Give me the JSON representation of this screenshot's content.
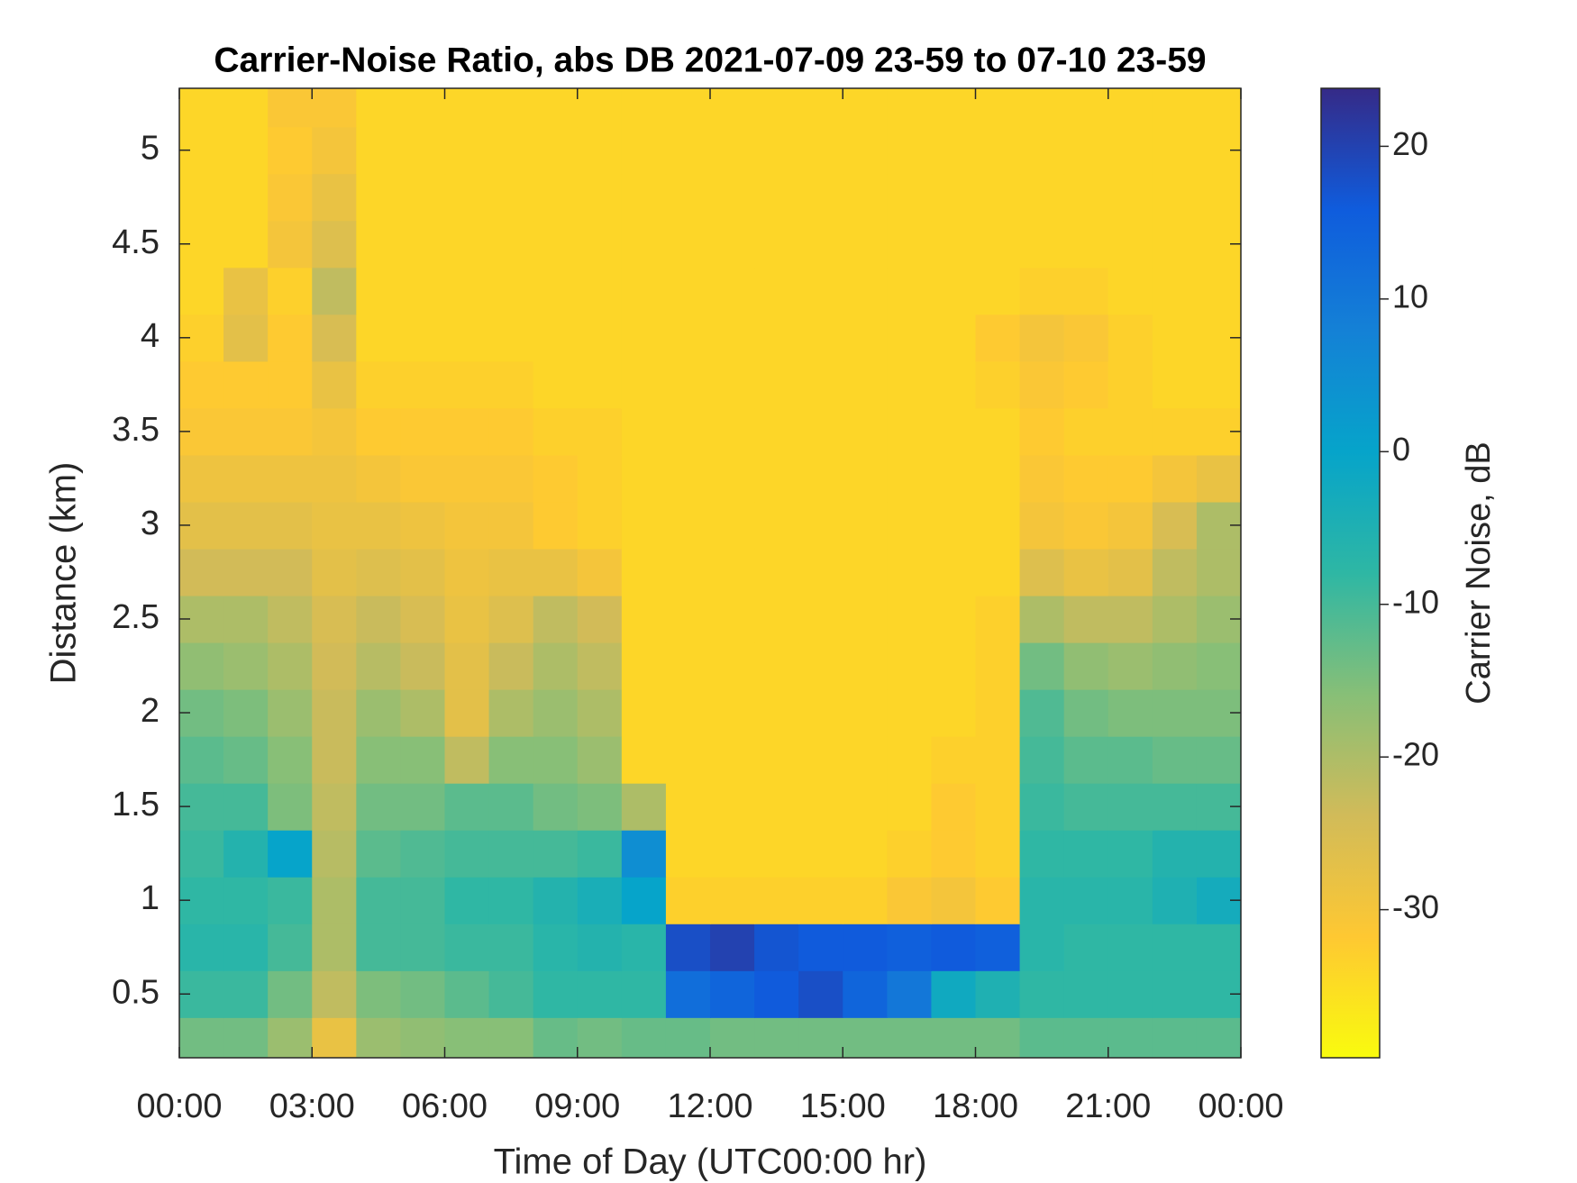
{
  "chart_data": {
    "type": "heatmap",
    "title": "Carrier-Noise Ratio, abs DB 2021-07-09 23-59 to 07-10 23-59",
    "x_label": "Time of Day (UTC00:00 hr)",
    "y_label": "Distance (km)",
    "colorbar_label": "Carrier Noise, dB",
    "x": [
      0.5,
      1.5,
      2.5,
      3.5,
      4.5,
      5.5,
      6.5,
      7.5,
      8.5,
      9.5,
      10.5,
      11.5,
      12.5,
      13.5,
      14.5,
      15.5,
      16.5,
      17.5,
      18.5,
      19.5,
      20.5,
      21.5,
      22.5,
      23.5
    ],
    "y": [
      0.25,
      0.5,
      0.75,
      1,
      1.25,
      1.5,
      1.75,
      2,
      2.25,
      2.5,
      2.75,
      3,
      3.25,
      3.5,
      3.75,
      4,
      4.25,
      4.5,
      4.75,
      5,
      5.25
    ],
    "z": [
      [
        -14,
        -14,
        -18,
        -28,
        -18,
        -17,
        -16,
        -16,
        -13,
        -14,
        -13,
        -13,
        -14,
        -14,
        -14,
        -14,
        -14,
        -14,
        -14,
        -12,
        -12,
        -12,
        -12,
        -12
      ],
      [
        -9,
        -9,
        -14,
        -22,
        -15,
        -14,
        -12,
        -10,
        -8,
        -8,
        -8,
        12,
        14,
        16,
        18,
        14,
        10,
        -2,
        -5,
        -8,
        -8,
        -8,
        -8,
        -8
      ],
      [
        -7,
        -7,
        -10,
        -20,
        -10,
        -10,
        -9,
        -9,
        -7,
        -6,
        -7,
        18,
        20,
        17,
        16,
        16,
        15,
        16,
        15,
        -7,
        -8,
        -8,
        -8,
        -8
      ],
      [
        -8,
        -8,
        -9,
        -20,
        -10,
        -10,
        -8,
        -8,
        -6,
        -4,
        0,
        -33,
        -33,
        -33,
        -33,
        -33,
        -31,
        -30,
        -32,
        -7,
        -7,
        -7,
        -5,
        -3
      ],
      [
        -9,
        -6,
        0,
        -21,
        -12,
        -11,
        -10,
        -10,
        -10,
        -9,
        5,
        -34,
        -34,
        -34,
        -34,
        -34,
        -33,
        -32,
        -33,
        -8,
        -8,
        -8,
        -6,
        -6
      ],
      [
        -10,
        -10,
        -15,
        -22,
        -14,
        -14,
        -12,
        -12,
        -14,
        -15,
        -20,
        -34,
        -34,
        -34,
        -34,
        -34,
        -34,
        -32,
        -33,
        -9,
        -10,
        -10,
        -10,
        -10
      ],
      [
        -12,
        -13,
        -16,
        -23,
        -16,
        -16,
        -22,
        -16,
        -16,
        -18,
        -34,
        -34,
        -34,
        -34,
        -34,
        -34,
        -34,
        -33,
        -33,
        -10,
        -12,
        -12,
        -13,
        -13
      ],
      [
        -14,
        -15,
        -18,
        -23,
        -18,
        -20,
        -27,
        -20,
        -18,
        -20,
        -34,
        -34,
        -34,
        -34,
        -34,
        -34,
        -34,
        -34,
        -33,
        -11,
        -14,
        -15,
        -15,
        -15
      ],
      [
        -17,
        -18,
        -20,
        -24,
        -21,
        -23,
        -27,
        -23,
        -20,
        -22,
        -34,
        -34,
        -34,
        -34,
        -34,
        -34,
        -34,
        -34,
        -33,
        -14,
        -17,
        -18,
        -17,
        -16
      ],
      [
        -20,
        -20,
        -22,
        -25,
        -23,
        -25,
        -28,
        -26,
        -22,
        -24,
        -34,
        -34,
        -34,
        -34,
        -34,
        -34,
        -34,
        -34,
        -33,
        -20,
        -22,
        -22,
        -20,
        -18
      ],
      [
        -24,
        -24,
        -24,
        -27,
        -26,
        -27,
        -29,
        -28,
        -28,
        -30,
        -34,
        -34,
        -34,
        -34,
        -34,
        -34,
        -34,
        -34,
        -34,
        -26,
        -28,
        -27,
        -22,
        -20
      ],
      [
        -27,
        -27,
        -27,
        -28,
        -28,
        -29,
        -30,
        -30,
        -32,
        -33,
        -34,
        -34,
        -34,
        -34,
        -34,
        -34,
        -34,
        -34,
        -34,
        -30,
        -31,
        -30,
        -25,
        -20
      ],
      [
        -29,
        -29,
        -29,
        -29,
        -30,
        -31,
        -31,
        -31,
        -32,
        -33,
        -34,
        -34,
        -34,
        -34,
        -34,
        -34,
        -34,
        -34,
        -34,
        -31,
        -32,
        -32,
        -30,
        -28
      ],
      [
        -31,
        -31,
        -31,
        -30,
        -32,
        -32,
        -32,
        -32,
        -33,
        -33,
        -34,
        -34,
        -34,
        -34,
        -34,
        -34,
        -34,
        -34,
        -34,
        -32,
        -33,
        -33,
        -33,
        -33
      ],
      [
        -32,
        -32,
        -32,
        -28,
        -33,
        -33,
        -33,
        -33,
        -34,
        -34,
        -34,
        -34,
        -34,
        -34,
        -34,
        -34,
        -34,
        -34,
        -33,
        -31,
        -32,
        -33,
        -34,
        -34
      ],
      [
        -33,
        -27,
        -32,
        -25,
        -34,
        -34,
        -34,
        -34,
        -34,
        -34,
        -34,
        -34,
        -34,
        -34,
        -34,
        -34,
        -34,
        -34,
        -32,
        -30,
        -31,
        -33,
        -34,
        -34
      ],
      [
        -34,
        -28,
        -33,
        -22,
        -34,
        -34,
        -34,
        -34,
        -34,
        -34,
        -34,
        -34,
        -34,
        -34,
        -34,
        -34,
        -34,
        -34,
        -34,
        -33,
        -33,
        -34,
        -34,
        -34
      ],
      [
        -34,
        -34,
        -30,
        -26,
        -34,
        -34,
        -34,
        -34,
        -34,
        -34,
        -34,
        -34,
        -34,
        -34,
        -34,
        -34,
        -34,
        -34,
        -34,
        -34,
        -34,
        -34,
        -34,
        -34
      ],
      [
        -34,
        -34,
        -31,
        -28,
        -34,
        -34,
        -34,
        -34,
        -34,
        -34,
        -34,
        -34,
        -34,
        -34,
        -34,
        -34,
        -34,
        -34,
        -34,
        -34,
        -34,
        -34,
        -34,
        -34
      ],
      [
        -34,
        -34,
        -32,
        -30,
        -34,
        -34,
        -34,
        -34,
        -34,
        -34,
        -34,
        -34,
        -34,
        -34,
        -34,
        -34,
        -34,
        -34,
        -34,
        -34,
        -34,
        -34,
        -34,
        -34
      ],
      [
        -34,
        -34,
        -31,
        -31,
        -34,
        -34,
        -34,
        -34,
        -34,
        -34,
        -34,
        -34,
        -34,
        -34,
        -34,
        -34,
        -34,
        -34,
        -34,
        -34,
        -34,
        -34,
        -34,
        -34
      ]
    ],
    "xlim": [
      0,
      24
    ],
    "xticks": [
      {
        "value": 0,
        "label": "00:00"
      },
      {
        "value": 3,
        "label": "03:00"
      },
      {
        "value": 6,
        "label": "06:00"
      },
      {
        "value": 9,
        "label": "09:00"
      },
      {
        "value": 12,
        "label": "12:00"
      },
      {
        "value": 15,
        "label": "15:00"
      },
      {
        "value": 18,
        "label": "18:00"
      },
      {
        "value": 21,
        "label": "21:00"
      },
      {
        "value": 24,
        "label": "00:00"
      }
    ],
    "ylim": [
      0.16,
      5.33
    ],
    "yticks": [
      0.5,
      1,
      1.5,
      2,
      2.5,
      3,
      3.5,
      4,
      4.5,
      5
    ],
    "clim": [
      -39.7,
      23.8
    ],
    "cticks": [
      -30,
      -20,
      -10,
      0,
      10,
      20
    ],
    "colormap": [
      "#f9fb0e",
      "#fec832",
      "#d1bb59",
      "#87bf77",
      "#2eb7a4",
      "#06a4ca",
      "#1481d6",
      "#0f5cdd",
      "#352a87"
    ]
  }
}
